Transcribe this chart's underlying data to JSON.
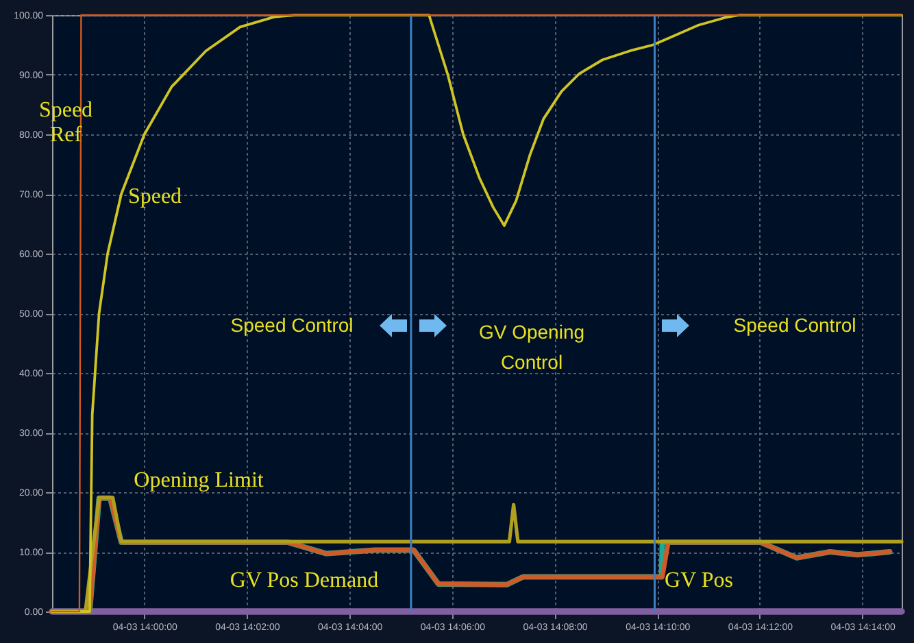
{
  "chart_data": {
    "type": "line",
    "annotations": [
      "Speed Control",
      "GV Opening Control",
      "Speed Control"
    ],
    "xlim": [
      "--04-03T13:58:12",
      "--04-03T14:14:46"
    ],
    "xticks": [
      {
        "value": "--04-03T14:00:00",
        "label": "04-03 14:00:00"
      },
      {
        "value": "--04-03T14:02:00",
        "label": "04-03 14:02:00"
      },
      {
        "value": "--04-03T14:04:00",
        "label": "04-03 14:04:00"
      },
      {
        "value": "--04-03T14:06:00",
        "label": "04-03 14:06:00"
      },
      {
        "value": "--04-03T14:08:00",
        "label": "04-03 14:08:00"
      },
      {
        "value": "--04-03T14:10:00",
        "label": "04-03 14:10:00"
      },
      {
        "value": "--04-03T14:12:00",
        "label": "04-03 14:12:00"
      },
      {
        "value": "--04-03T14:14:00",
        "label": "04-03 14:14:00"
      }
    ],
    "ylim": [
      0,
      100
    ],
    "yticks": [
      {
        "value": 0,
        "label": "0.00"
      },
      {
        "value": 10,
        "label": "10.00"
      },
      {
        "value": 20,
        "label": "20.00"
      },
      {
        "value": 30,
        "label": "30.00"
      },
      {
        "value": 40,
        "label": "40.00"
      },
      {
        "value": 50,
        "label": "50.00"
      },
      {
        "value": 60,
        "label": "60.00"
      },
      {
        "value": 70,
        "label": "70.00"
      },
      {
        "value": 80,
        "label": "80.00"
      },
      {
        "value": 90,
        "label": "90.00"
      },
      {
        "value": 100,
        "label": "100.00"
      }
    ],
    "grid": true,
    "line_style": "solid",
    "ref_lines": [
      {
        "axis": "x",
        "value": "--04-03T14:05:12",
        "color": "#3f7fc0"
      },
      {
        "axis": "x",
        "value": "--04-03T14:09:57",
        "color": "#3f7fc0"
      }
    ],
    "series": [
      {
        "color": "#8060a0",
        "x": [
          "--04-03T13:58:12",
          "--04-03T14:14:46"
        ],
        "values": [
          0,
          0
        ]
      },
      {
        "name": "GV Pos",
        "color": "#20a890",
        "x": [
          "--04-03T13:58:12",
          "--04-03T13:58:56",
          "--04-03T13:59:07",
          "--04-03T13:59:20",
          "--04-03T13:59:33",
          "--04-03T14:02:48",
          "--04-03T14:03:33",
          "--04-03T14:04:30",
          "--04-03T14:05:15",
          "--04-03T14:05:44",
          "--04-03T14:07:04",
          "--04-03T14:07:23",
          "--04-03T14:10:05",
          "--04-03T14:10:06",
          "--04-03T14:12:01",
          "--04-03T14:12:43",
          "--04-03T14:13:22",
          "--04-03T14:13:54",
          "--04-03T14:14:32"
        ],
        "values": [
          0,
          0,
          19,
          19,
          11.6,
          11.6,
          9.7,
          10.3,
          10.3,
          4.6,
          4.5,
          5.8,
          5.8,
          11.6,
          11.6,
          9.0,
          10,
          9.5,
          10
        ]
      },
      {
        "name": "GV Pos Demand",
        "color": "#d05a28",
        "x": [
          "--04-03T13:58:12",
          "--04-03T13:58:56",
          "--04-03T13:59:07",
          "--04-03T13:59:20",
          "--04-03T13:59:33",
          "--04-03T14:02:48",
          "--04-03T14:03:33",
          "--04-03T14:04:30",
          "--04-03T14:05:15",
          "--04-03T14:05:44",
          "--04-03T14:07:04",
          "--04-03T14:07:23",
          "--04-03T14:10:06",
          "--04-03T14:10:13",
          "--04-03T14:12:01",
          "--04-03T14:12:43",
          "--04-03T14:13:22",
          "--04-03T14:13:54",
          "--04-03T14:14:32"
        ],
        "values": [
          0,
          0,
          19,
          19,
          11.6,
          11.6,
          9.7,
          10.3,
          10.3,
          4.6,
          4.5,
          5.8,
          5.8,
          11.6,
          11.6,
          9.0,
          10,
          9.5,
          10
        ]
      },
      {
        "name": "Opening Limit",
        "color": "#b0a020",
        "x": [
          "--04-03T13:58:12",
          "--04-03T13:58:51",
          "--04-03T13:59:07",
          "--04-03T13:59:23",
          "--04-03T13:59:33",
          "--04-03T14:07:07",
          "--04-03T14:07:12",
          "--04-03T14:07:17",
          "--04-03T14:14:46"
        ],
        "values": [
          0,
          0,
          19.1,
          19.1,
          11.7,
          11.7,
          17.9,
          11.7,
          11.7
        ]
      },
      {
        "name": "Speed",
        "color": "#cfc423",
        "x": [
          "--04-03T13:58:12",
          "--04-03T13:58:56",
          "--04-03T13:58:59",
          "--04-03T13:59:07",
          "--04-03T13:59:17",
          "--04-03T13:59:33",
          "--04-03T14:00:00",
          "--04-03T14:00:32",
          "--04-03T14:01:12",
          "--04-03T14:01:52",
          "--04-03T14:02:32",
          "--04-03T14:02:56",
          "--04-03T14:05:33",
          "--04-03T14:05:55",
          "--04-03T14:06:13",
          "--04-03T14:06:32",
          "--04-03T14:06:48",
          "--04-03T14:07:01",
          "--04-03T14:07:15",
          "--04-03T14:07:31",
          "--04-03T14:07:47",
          "--04-03T14:08:08",
          "--04-03T14:08:29",
          "--04-03T14:08:56",
          "--04-03T14:09:28",
          "--04-03T14:09:55",
          "--04-03T14:10:16",
          "--04-03T14:10:48",
          "--04-03T14:11:20",
          "--04-03T14:11:36",
          "--04-03T14:14:46"
        ],
        "values": [
          0,
          0,
          33,
          50,
          60,
          70,
          80,
          88,
          94,
          98,
          99.7,
          100,
          100,
          90,
          80,
          72.7,
          67.8,
          64.7,
          68.9,
          76.5,
          82.6,
          87.2,
          90.2,
          92.5,
          94,
          95,
          96.3,
          98.3,
          99.6,
          100,
          100
        ]
      },
      {
        "name": "Speed Ref",
        "color": "#d05a20",
        "x": [
          "--04-03T13:58:12",
          "--04-03T13:58:44",
          "--04-03T13:58:46",
          "--04-03T14:14:46"
        ],
        "values": [
          0,
          0,
          100,
          100
        ]
      }
    ]
  }
}
